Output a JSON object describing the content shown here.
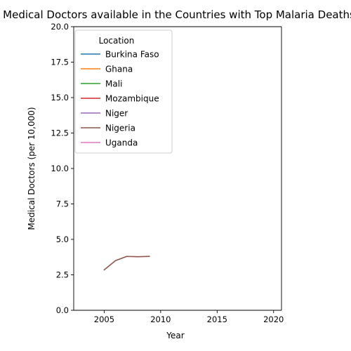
{
  "chart_data": {
    "type": "line",
    "title": "Medical Doctors available in the Countries with Top Malaria Deaths",
    "xlabel": "Year",
    "ylabel": "Medical Doctors (per 10,000)",
    "xlim": [
      2002.3,
      2020.7
    ],
    "ylim": [
      0,
      20
    ],
    "xticks": [
      2005,
      2010,
      2015,
      2020
    ],
    "yticks": [
      0.0,
      2.5,
      5.0,
      7.5,
      10.0,
      12.5,
      15.0,
      17.5,
      20.0
    ],
    "xtick_labels": [
      "2005",
      "2010",
      "2015",
      "2020"
    ],
    "ytick_labels": [
      "0.0",
      "2.5",
      "5.0",
      "7.5",
      "10.0",
      "12.5",
      "15.0",
      "17.5",
      "20.0"
    ],
    "grid": false,
    "legend": {
      "title": "Location",
      "placement": "upper-left"
    },
    "series": [
      {
        "name": "Burkina Faso",
        "color": "#1f77b4",
        "x": [],
        "y": []
      },
      {
        "name": "Ghana",
        "color": "#ff7f0e",
        "x": [],
        "y": []
      },
      {
        "name": "Mali",
        "color": "#2ca02c",
        "x": [],
        "y": []
      },
      {
        "name": "Mozambique",
        "color": "#d62728",
        "x": [],
        "y": []
      },
      {
        "name": "Niger",
        "color": "#9467bd",
        "x": [],
        "y": []
      },
      {
        "name": "Nigeria",
        "color": "#8c564b",
        "x": [
          2005,
          2006,
          2007,
          2008,
          2009
        ],
        "y": [
          2.85,
          3.5,
          3.8,
          3.78,
          3.8
        ]
      },
      {
        "name": "Uganda",
        "color": "#e377c2",
        "x": [],
        "y": []
      }
    ]
  }
}
